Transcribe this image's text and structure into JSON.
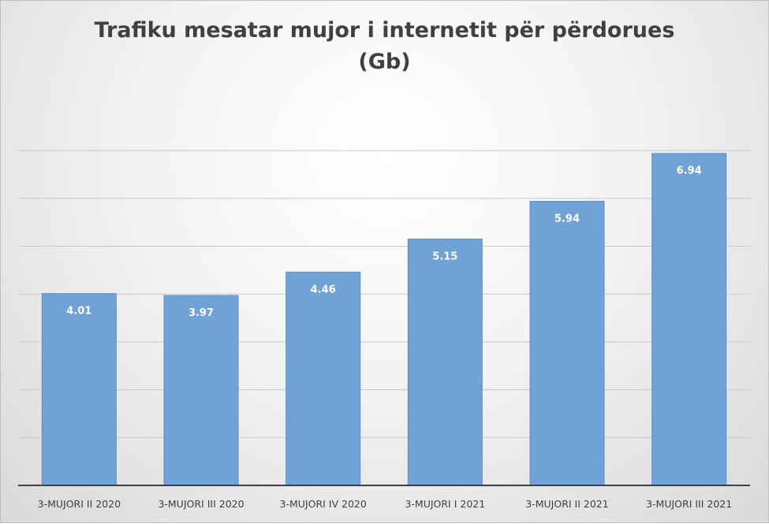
{
  "chart_data": {
    "type": "bar",
    "title_line1": "Trafiku mesatar mujor i internetit për përdorues",
    "title_line2": "(Gb)",
    "xlabel": "",
    "ylabel": "",
    "categories": [
      "3-MUJORI II 2020",
      "3-MUJORI III 2020",
      "3-MUJORI IV 2020",
      "3-MUJORI I 2021",
      "3-MUJORI II 2021",
      "3-MUJORI III 2021"
    ],
    "values": [
      4.01,
      3.97,
      4.46,
      5.15,
      5.94,
      6.94
    ],
    "data_labels": [
      "4.01",
      "3.97",
      "4.46",
      "5.15",
      "5.94",
      "6.94"
    ],
    "ylim": [
      0,
      7
    ],
    "grid": true,
    "legend": "none",
    "bar_color": "#6fa3d8",
    "bar_border_color": "#5b8fc7",
    "axis_color": "#404040",
    "grid_color": "#c8c8c8"
  }
}
